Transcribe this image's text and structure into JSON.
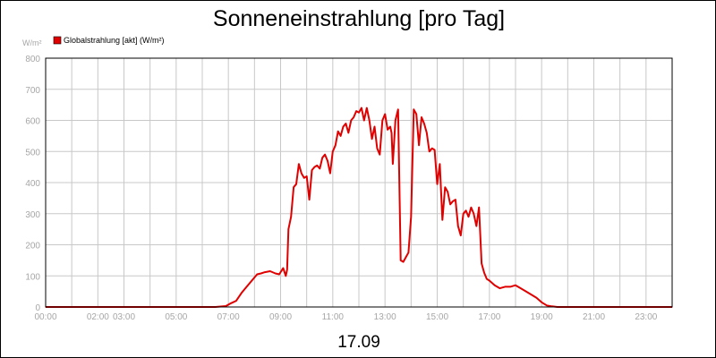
{
  "chart_data": {
    "type": "line",
    "title": "Sonneneinstrahlung [pro Tag]",
    "ylabel": "W/m²",
    "xlabel": "17.09",
    "ylim": [
      0,
      800
    ],
    "yticks": [
      0,
      100,
      200,
      300,
      400,
      500,
      600,
      700,
      800
    ],
    "xlim": [
      0,
      24
    ],
    "xticks": [
      {
        "label": "00:00",
        "x": 0
      },
      {
        "label": "02:00",
        "x": 2
      },
      {
        "label": "03:00",
        "x": 3
      },
      {
        "label": "05:00",
        "x": 5
      },
      {
        "label": "07:00",
        "x": 7
      },
      {
        "label": "09:00",
        "x": 9
      },
      {
        "label": "11:00",
        "x": 11
      },
      {
        "label": "13:00",
        "x": 13
      },
      {
        "label": "15:00",
        "x": 15
      },
      {
        "label": "17:00",
        "x": 17
      },
      {
        "label": "19:00",
        "x": 19
      },
      {
        "label": "21:00",
        "x": 21
      },
      {
        "label": "23:00",
        "x": 23
      }
    ],
    "grid": true,
    "legend": "top-left",
    "series": [
      {
        "name": "Globalstrahlung [akt] (W/m²)",
        "color": "#e00000",
        "x": [
          0,
          6.5,
          6.9,
          7.1,
          7.3,
          7.5,
          7.7,
          7.9,
          8.1,
          8.25,
          8.4,
          8.6,
          8.8,
          8.95,
          9.1,
          9.2,
          9.25,
          9.3,
          9.4,
          9.5,
          9.6,
          9.7,
          9.8,
          9.9,
          10.0,
          10.1,
          10.2,
          10.3,
          10.4,
          10.5,
          10.6,
          10.7,
          10.8,
          10.9,
          11.0,
          11.1,
          11.2,
          11.3,
          11.4,
          11.5,
          11.6,
          11.7,
          11.8,
          11.9,
          12.0,
          12.1,
          12.2,
          12.3,
          12.4,
          12.5,
          12.6,
          12.7,
          12.8,
          12.9,
          13.0,
          13.1,
          13.2,
          13.25,
          13.3,
          13.4,
          13.5,
          13.6,
          13.7,
          13.8,
          13.9,
          14.0,
          14.1,
          14.2,
          14.3,
          14.4,
          14.5,
          14.6,
          14.7,
          14.8,
          14.9,
          15.0,
          15.1,
          15.2,
          15.3,
          15.4,
          15.5,
          15.6,
          15.7,
          15.8,
          15.9,
          16.0,
          16.1,
          16.2,
          16.3,
          16.4,
          16.5,
          16.6,
          16.7,
          16.8,
          16.9,
          17.0,
          17.2,
          17.4,
          17.6,
          17.8,
          18.0,
          18.2,
          18.4,
          18.6,
          18.8,
          19.0,
          19.2,
          19.4,
          19.6,
          19.8,
          20.0,
          24.0
        ],
        "y": [
          0,
          0,
          3,
          12,
          20,
          45,
          65,
          85,
          105,
          108,
          112,
          115,
          108,
          105,
          125,
          100,
          120,
          250,
          290,
          385,
          395,
          460,
          430,
          415,
          420,
          345,
          440,
          450,
          455,
          445,
          480,
          490,
          470,
          430,
          500,
          520,
          565,
          550,
          580,
          590,
          560,
          600,
          610,
          630,
          625,
          640,
          600,
          640,
          600,
          540,
          580,
          510,
          490,
          600,
          620,
          570,
          580,
          560,
          460,
          600,
          635,
          150,
          145,
          160,
          175,
          290,
          635,
          620,
          520,
          610,
          590,
          560,
          500,
          510,
          505,
          395,
          460,
          280,
          385,
          370,
          330,
          340,
          345,
          260,
          230,
          300,
          310,
          290,
          320,
          300,
          260,
          320,
          140,
          110,
          90,
          85,
          70,
          60,
          65,
          65,
          70,
          60,
          50,
          40,
          30,
          15,
          5,
          2,
          0,
          0,
          0,
          0
        ]
      }
    ]
  }
}
